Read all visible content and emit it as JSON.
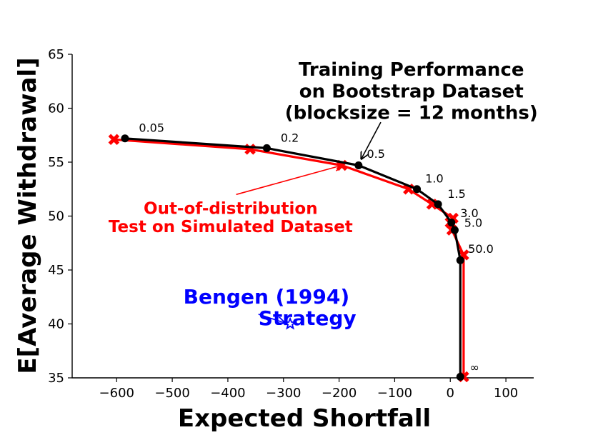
{
  "chart_data": {
    "type": "line",
    "xlabel": "Expected Shortfall",
    "ylabel": "E[Average Withdrawal]",
    "xlim": [
      -680,
      150
    ],
    "ylim": [
      35,
      65
    ],
    "xticks": [
      -600,
      -500,
      -400,
      -300,
      -200,
      -100,
      0,
      100
    ],
    "yticks": [
      35,
      40,
      45,
      50,
      55,
      60,
      65
    ],
    "xtick_labels": [
      "−600",
      "−500",
      "−400",
      "−300",
      "−200",
      "−100",
      "0",
      "100"
    ],
    "ytick_labels": [
      "35",
      "40",
      "45",
      "50",
      "55",
      "60",
      "65"
    ],
    "series": [
      {
        "color": "#000000",
        "marker": "circle",
        "points": [
          {
            "x": -585,
            "y": 57.2
          },
          {
            "x": -330,
            "y": 56.3
          },
          {
            "x": -165,
            "y": 54.7
          },
          {
            "x": -60,
            "y": 52.5
          },
          {
            "x": -22,
            "y": 51.1
          },
          {
            "x": 2,
            "y": 49.4
          },
          {
            "x": 8,
            "y": 48.7
          },
          {
            "x": 18,
            "y": 45.9
          },
          {
            "x": 18,
            "y": 35.1
          }
        ]
      },
      {
        "color": "#ff0000",
        "marker": "x",
        "points": [
          {
            "x": -605,
            "y": 57.1
          },
          {
            "x": -360,
            "y": 56.2
          },
          {
            "x": -195,
            "y": 54.7
          },
          {
            "x": -75,
            "y": 52.5
          },
          {
            "x": -33,
            "y": 51.1
          },
          {
            "x": 5,
            "y": 49.8
          },
          {
            "x": 0,
            "y": 49.4
          },
          {
            "x": 3,
            "y": 48.7
          },
          {
            "x": 24,
            "y": 46.4
          },
          {
            "x": 24,
            "y": 35.1
          }
        ]
      }
    ],
    "point_labels": [
      {
        "text": "0.05",
        "x": -560,
        "y": 57.8
      },
      {
        "text": "0.2",
        "x": -305,
        "y": 56.9
      },
      {
        "text": "0.5",
        "x": -150,
        "y": 55.4
      },
      {
        "text": "1.0",
        "x": -45,
        "y": 53.1
      },
      {
        "text": "1.5",
        "x": -5,
        "y": 51.7
      },
      {
        "text": "3.0",
        "x": 18,
        "y": 49.9
      },
      {
        "text": "5.0",
        "x": 25,
        "y": 49.0
      },
      {
        "text": "50.0",
        "x": 32,
        "y": 46.6
      },
      {
        "text": "∞",
        "x": 35,
        "y": 35.6
      }
    ],
    "annotations": [
      {
        "id": "training",
        "color": "#000000",
        "lines": [
          "Training Performance",
          "on Bootstrap Dataset",
          "(blocksize = 12 months)"
        ],
        "text_x": -70,
        "text_y": [
          63.0,
          61.0,
          59.0
        ],
        "arrow_from": [
          -125,
          58.7
        ],
        "arrow_to": [
          -160,
          55.3
        ]
      },
      {
        "id": "ood",
        "color": "#ff0000",
        "lines": [
          "Out-of-distribution",
          "Test on Simulated Dataset"
        ],
        "text_x": -395,
        "text_y": [
          50.2,
          48.5
        ],
        "arrow_from": [
          -385,
          52.0
        ],
        "arrow_to": [
          -195,
          54.7
        ]
      },
      {
        "id": "bengen",
        "color": "#0000ff",
        "lines": [
          "Bengen (1994)",
          "Strategy"
        ],
        "text_x": [
          -480,
          -345
        ],
        "text_y": [
          41.9,
          39.9
        ],
        "arrow_from": [
          -345,
          40.9
        ],
        "arrow_to": [
          -298,
          40.1
        ]
      }
    ],
    "bengen_point": {
      "x": -288,
      "y": 40.0,
      "color": "#0000ff",
      "marker": "star"
    }
  }
}
